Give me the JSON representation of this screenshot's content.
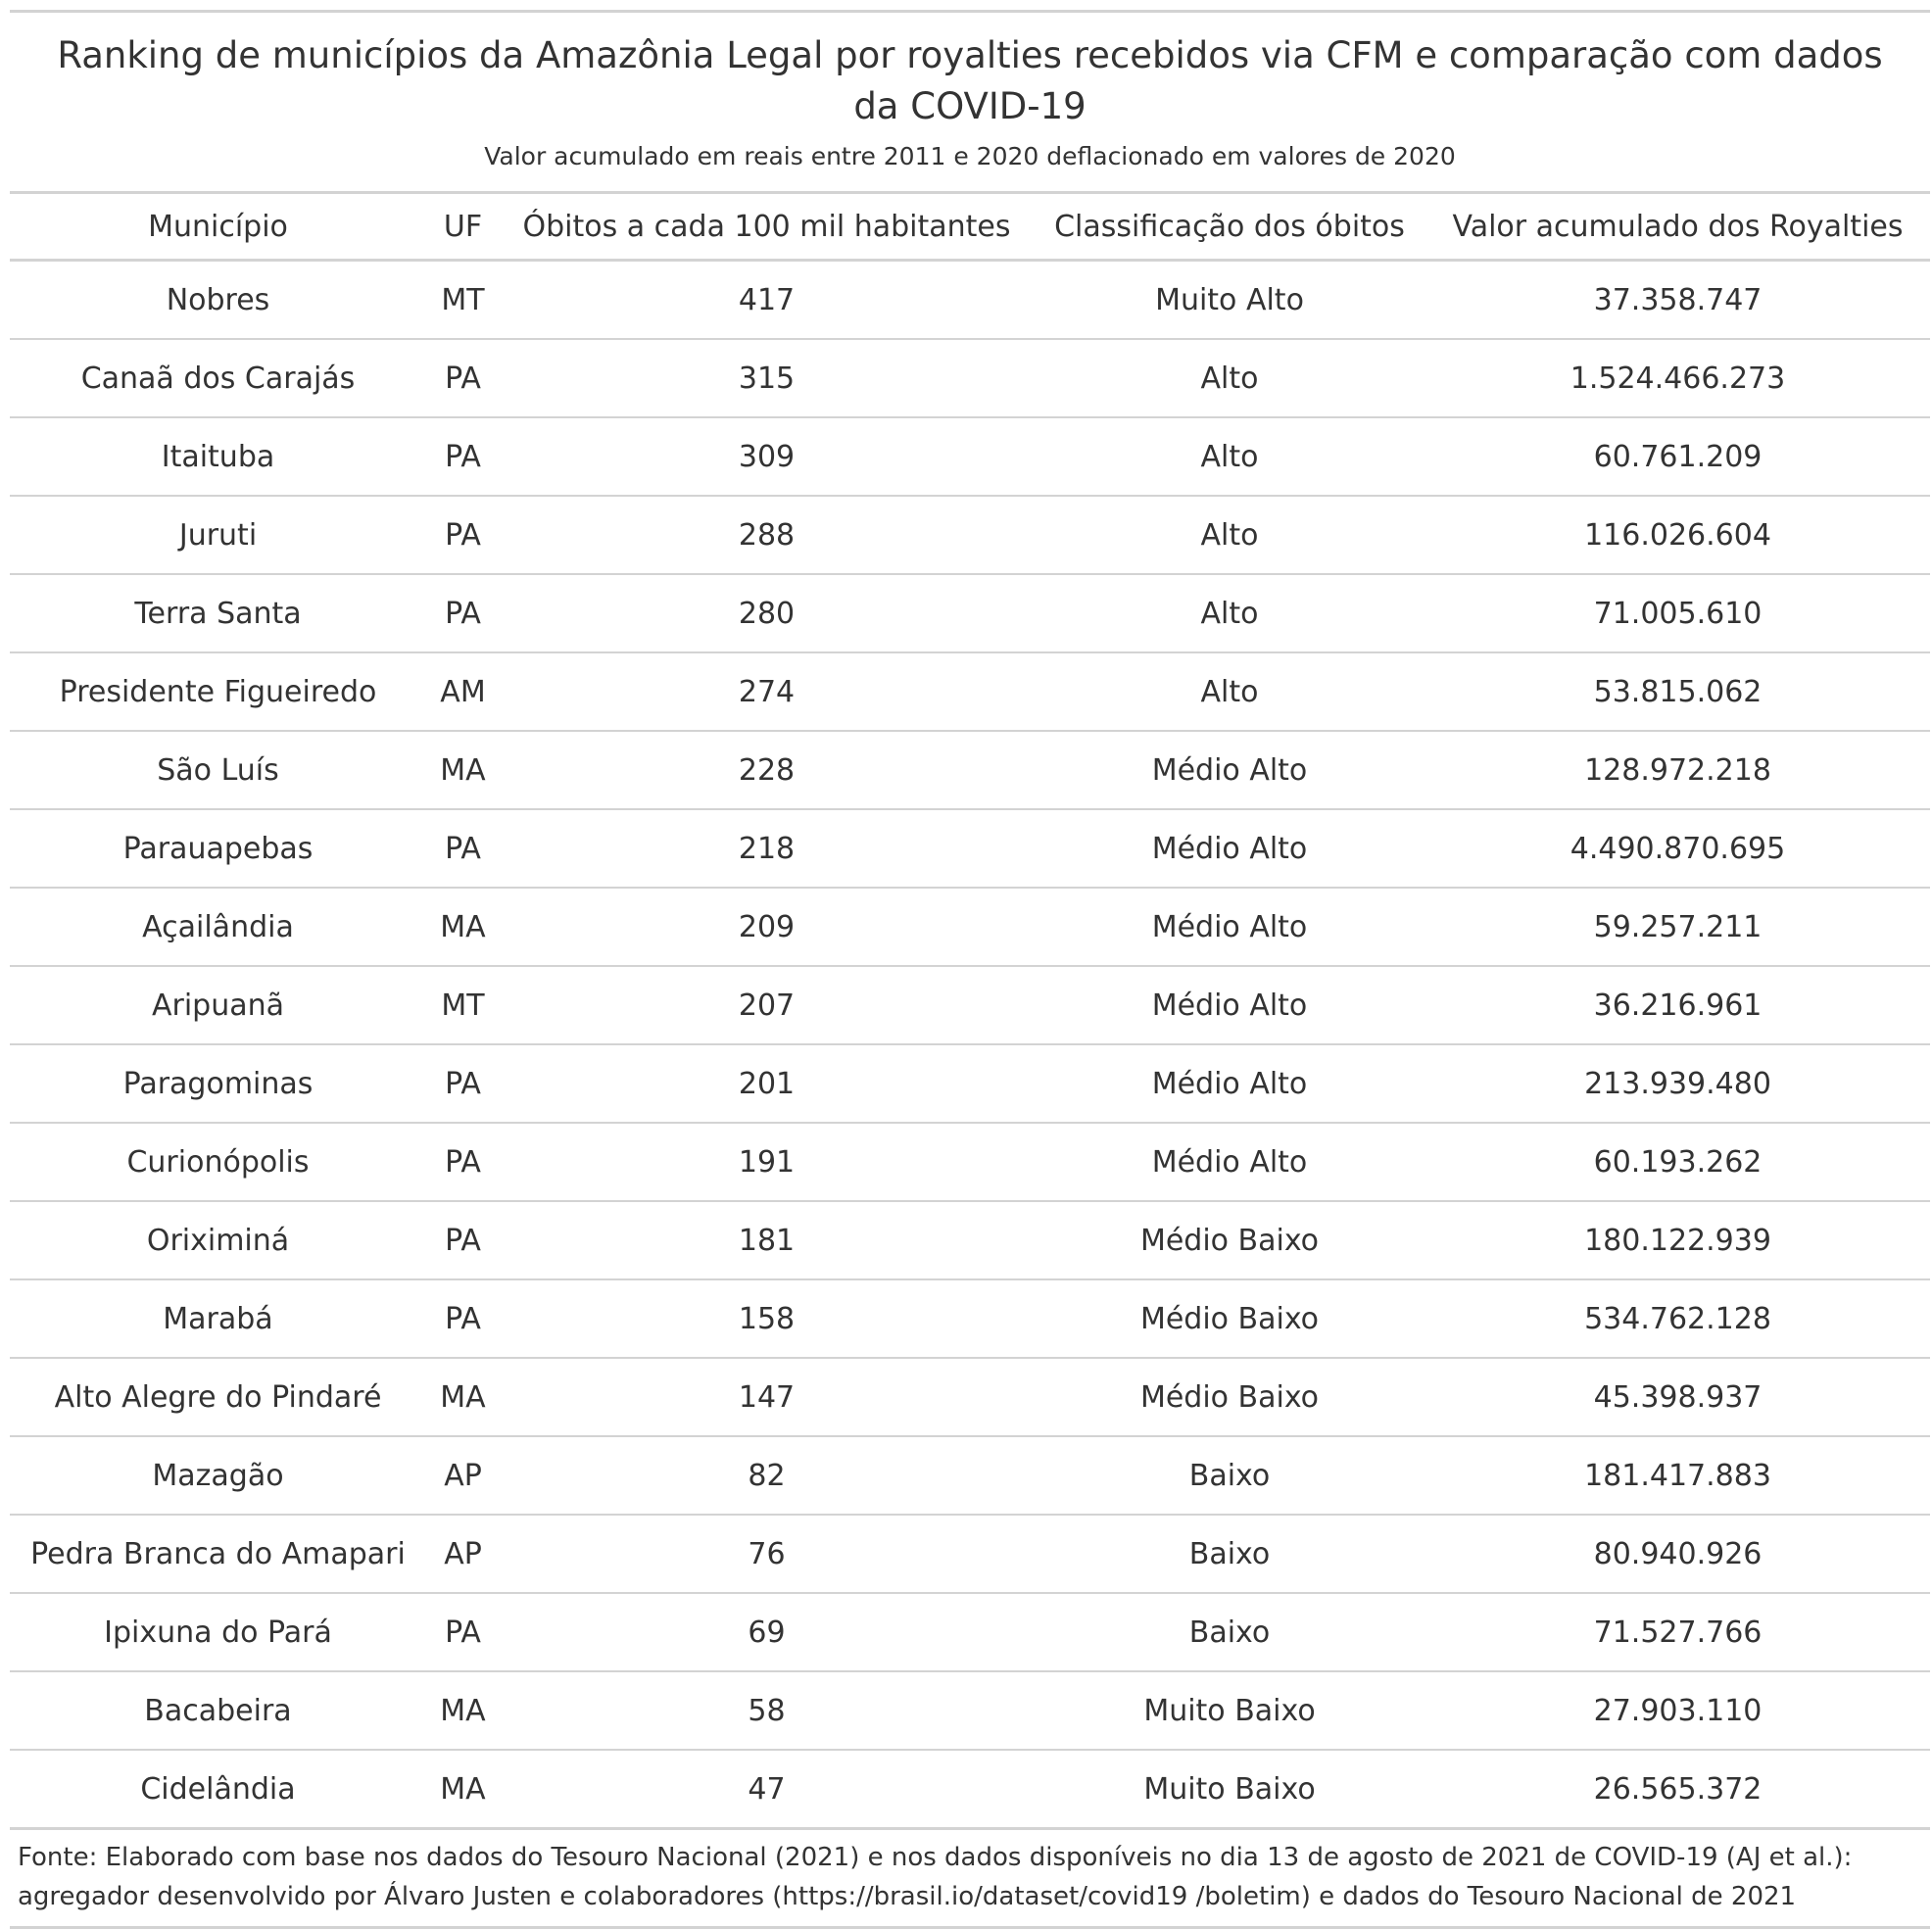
{
  "title": "Ranking de municípios da Amazônia Legal por royalties recebidos via CFM e comparação com dados da COVID-19",
  "subtitle": "Valor acumulado em reais entre 2011 e 2020 deflacionado em valores de 2020",
  "source_line_1": "Fonte: Elaborado com base nos dados do Tesouro Nacional (2021) e nos dados disponíveis no dia 13 de agosto de 2021 de COVID-19 (AJ et al.):",
  "source_line_2": "agregador desenvolvido por Álvaro Justen e colaboradores (https://brasil.io/dataset/covid19 /boletim) e dados do Tesouro Nacional de 2021",
  "chart_data": {
    "type": "table",
    "title": "Ranking de municípios da Amazônia Legal por royalties recebidos via CFM e comparação com dados da COVID-19",
    "subtitle": "Valor acumulado em reais entre 2011 e 2020 deflacionado em valores de 2020",
    "columns": [
      "Município",
      "UF",
      "Óbitos a cada 100 mil habitantes",
      "Classificação dos óbitos",
      "Valor acumulado dos Royalties"
    ],
    "rows": [
      [
        "Nobres",
        "MT",
        "417",
        "Muito Alto",
        "37.358.747"
      ],
      [
        "Canaã dos Carajás",
        "PA",
        "315",
        "Alto",
        "1.524.466.273"
      ],
      [
        "Itaituba",
        "PA",
        "309",
        "Alto",
        "60.761.209"
      ],
      [
        "Juruti",
        "PA",
        "288",
        "Alto",
        "116.026.604"
      ],
      [
        "Terra Santa",
        "PA",
        "280",
        "Alto",
        "71.005.610"
      ],
      [
        "Presidente Figueiredo",
        "AM",
        "274",
        "Alto",
        "53.815.062"
      ],
      [
        "São Luís",
        "MA",
        "228",
        "Médio Alto",
        "128.972.218"
      ],
      [
        "Parauapebas",
        "PA",
        "218",
        "Médio Alto",
        "4.490.870.695"
      ],
      [
        "Açailândia",
        "MA",
        "209",
        "Médio Alto",
        "59.257.211"
      ],
      [
        "Aripuanã",
        "MT",
        "207",
        "Médio Alto",
        "36.216.961"
      ],
      [
        "Paragominas",
        "PA",
        "201",
        "Médio Alto",
        "213.939.480"
      ],
      [
        "Curionópolis",
        "PA",
        "191",
        "Médio Alto",
        "60.193.262"
      ],
      [
        "Oriximiná",
        "PA",
        "181",
        "Médio Baixo",
        "180.122.939"
      ],
      [
        "Marabá",
        "PA",
        "158",
        "Médio Baixo",
        "534.762.128"
      ],
      [
        "Alto Alegre do Pindaré",
        "MA",
        "147",
        "Médio Baixo",
        "45.398.937"
      ],
      [
        "Mazagão",
        "AP",
        "82",
        "Baixo",
        "181.417.883"
      ],
      [
        "Pedra Branca do Amapari",
        "AP",
        "76",
        "Baixo",
        "80.940.926"
      ],
      [
        "Ipixuna do Pará",
        "PA",
        "69",
        "Baixo",
        "71.527.766"
      ],
      [
        "Bacabeira",
        "MA",
        "58",
        "Muito Baixo",
        "27.903.110"
      ],
      [
        "Cidelândia",
        "MA",
        "47",
        "Muito Baixo",
        "26.565.372"
      ]
    ]
  }
}
